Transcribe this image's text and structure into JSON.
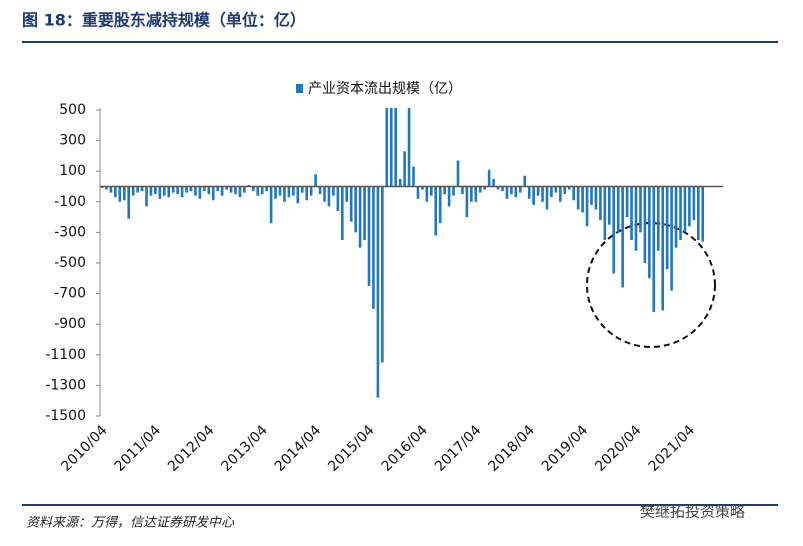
{
  "chart_data": {
    "type": "bar",
    "title": "图 18：重要股东减持规模（单位：亿）",
    "source": "资料来源：万得，信达证券研发中心",
    "watermark": "樊继拓投资策略",
    "categories": [
      "2010/04",
      null,
      null,
      null,
      null,
      null,
      null,
      null,
      null,
      null,
      null,
      null,
      "2011/04",
      null,
      null,
      null,
      null,
      null,
      null,
      null,
      null,
      null,
      null,
      null,
      "2012/04",
      null,
      null,
      null,
      null,
      null,
      null,
      null,
      null,
      null,
      null,
      null,
      "2013/04",
      null,
      null,
      null,
      null,
      null,
      null,
      null,
      null,
      null,
      null,
      null,
      "2014/04",
      null,
      null,
      null,
      null,
      null,
      null,
      null,
      null,
      null,
      null,
      null,
      "2015/04",
      null,
      null,
      null,
      null,
      null,
      null,
      null,
      null,
      null,
      null,
      null,
      "2016/04",
      null,
      null,
      null,
      null,
      null,
      null,
      null,
      null,
      null,
      null,
      null,
      "2017/04",
      null,
      null,
      null,
      null,
      null,
      null,
      null,
      null,
      null,
      null,
      null,
      "2018/04",
      null,
      null,
      null,
      null,
      null,
      null,
      null,
      null,
      null,
      null,
      null,
      "2019/04",
      null,
      null,
      null,
      null,
      null,
      null,
      null,
      null,
      null,
      null,
      null,
      "2020/04",
      null,
      null,
      null,
      null,
      null,
      null,
      null,
      null,
      null,
      null,
      null,
      "2021/04",
      null,
      null,
      null
    ],
    "series": [
      {
        "name": "产业资本流出规模（亿）",
        "color": "#1f77c4",
        "values": [
          -10,
          -20,
          -40,
          -70,
          -100,
          -90,
          -210,
          -60,
          -40,
          -30,
          -130,
          -60,
          -50,
          -80,
          -60,
          -70,
          -40,
          -50,
          -70,
          -40,
          -30,
          -60,
          -80,
          -30,
          -50,
          -90,
          -30,
          -60,
          -20,
          -40,
          -50,
          -70,
          -40,
          10,
          -30,
          -60,
          -50,
          -30,
          -240,
          -80,
          -60,
          -100,
          -70,
          -60,
          -110,
          -40,
          -90,
          -60,
          80,
          -50,
          -100,
          -130,
          -60,
          -160,
          -350,
          -100,
          -230,
          -300,
          -400,
          -350,
          -650,
          -800,
          -1380,
          -1150,
          600,
          600,
          600,
          50,
          230,
          600,
          130,
          -80,
          -20,
          -100,
          -60,
          -320,
          -240,
          -50,
          -130,
          -60,
          170,
          -50,
          -200,
          -100,
          -100,
          -40,
          -20,
          110,
          50,
          -20,
          -30,
          -80,
          -50,
          -70,
          -40,
          70,
          -80,
          -120,
          -60,
          -100,
          -150,
          -70,
          -40,
          -100,
          -50,
          -20,
          -90,
          -150,
          -170,
          -260,
          -120,
          -150,
          -220,
          -350,
          -250,
          -570,
          -300,
          -660,
          -200,
          -350,
          -420,
          -300,
          -500,
          -600,
          -820,
          -420,
          -810,
          -540,
          -680,
          -400,
          -350,
          -300,
          -260,
          -220,
          -350,
          -360
        ]
      }
    ],
    "ylim": [
      -1500,
      500
    ],
    "yticks": [
      500,
      300,
      100,
      -100,
      -300,
      -500,
      -700,
      -900,
      -1100,
      -1300,
      -1500
    ],
    "legend": "top"
  }
}
